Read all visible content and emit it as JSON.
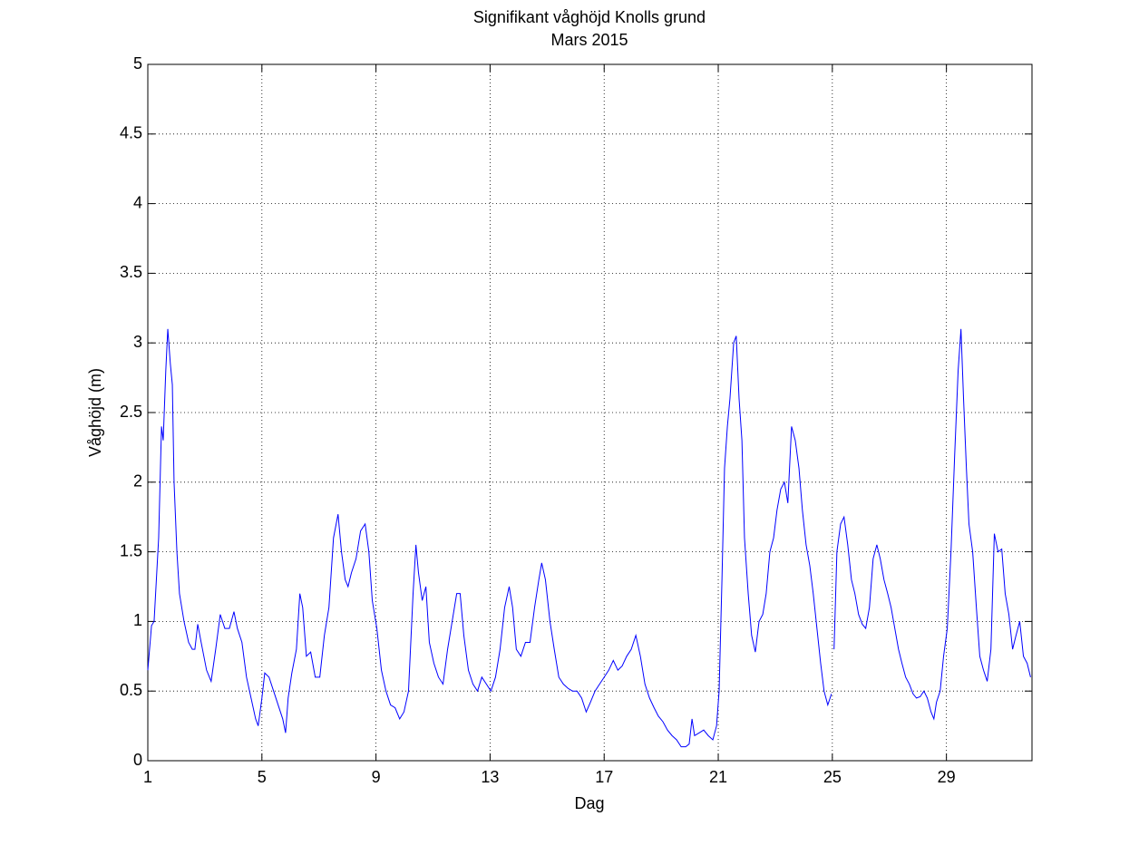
{
  "chart_data": {
    "type": "line",
    "title": "Signifikant våghöjd Knolls grund",
    "subtitle": "Mars 2015",
    "xlabel": "Dag",
    "ylabel": "Våghöjd (m)",
    "color": "#0000ff",
    "grid": true,
    "xlim": [
      1,
      32
    ],
    "ylim": [
      0,
      5
    ],
    "xticks": [
      1,
      5,
      9,
      13,
      17,
      21,
      25,
      29
    ],
    "yticks": [
      0,
      0.5,
      1,
      1.5,
      2,
      2.5,
      3,
      3.5,
      4,
      4.5,
      5
    ],
    "x": [
      1.0,
      1.13,
      1.22,
      1.38,
      1.48,
      1.54,
      1.63,
      1.7,
      1.79,
      1.86,
      1.92,
      2.02,
      2.11,
      2.27,
      2.43,
      2.56,
      2.65,
      2.75,
      2.87,
      3.06,
      3.22,
      3.38,
      3.54,
      3.7,
      3.86,
      4.02,
      4.14,
      4.3,
      4.46,
      4.62,
      4.78,
      4.87,
      5.0,
      5.1,
      5.25,
      5.41,
      5.57,
      5.73,
      5.83,
      5.92,
      6.05,
      6.21,
      6.33,
      6.43,
      6.56,
      6.71,
      6.87,
      7.03,
      7.19,
      7.35,
      7.51,
      7.67,
      7.79,
      7.92,
      8.02,
      8.14,
      8.3,
      8.46,
      8.62,
      8.75,
      8.87,
      9.03,
      9.19,
      9.35,
      9.51,
      9.67,
      9.83,
      9.98,
      10.14,
      10.3,
      10.4,
      10.49,
      10.62,
      10.75,
      10.87,
      11.03,
      11.19,
      11.35,
      11.51,
      11.67,
      11.83,
      11.95,
      12.08,
      12.24,
      12.4,
      12.56,
      12.71,
      12.87,
      13.03,
      13.19,
      13.35,
      13.51,
      13.67,
      13.79,
      13.92,
      14.08,
      14.24,
      14.4,
      14.56,
      14.71,
      14.81,
      14.94,
      15.1,
      15.25,
      15.41,
      15.57,
      15.73,
      15.89,
      16.05,
      16.21,
      16.37,
      16.52,
      16.68,
      16.84,
      17.0,
      17.16,
      17.32,
      17.48,
      17.63,
      17.79,
      17.95,
      18.11,
      18.27,
      18.43,
      18.59,
      18.75,
      18.9,
      19.06,
      19.22,
      19.38,
      19.54,
      19.7,
      19.86,
      19.98,
      20.08,
      20.17,
      20.33,
      20.49,
      20.65,
      20.81,
      20.94,
      21.03,
      21.13,
      21.22,
      21.32,
      21.41,
      21.54,
      21.63,
      21.73,
      21.83,
      21.92,
      22.05,
      22.17,
      22.3,
      22.43,
      22.56,
      22.68,
      22.81,
      22.94,
      23.06,
      23.19,
      23.32,
      23.44,
      23.57,
      23.7,
      23.83,
      23.95,
      24.08,
      24.21,
      24.33,
      24.46,
      24.59,
      24.71,
      24.84,
      24.97,
      25.03,
      25.06,
      25.16,
      25.29,
      25.41,
      25.54,
      25.67,
      25.79,
      25.92,
      26.05,
      26.17,
      26.3,
      26.43,
      26.56,
      26.68,
      26.81,
      26.94,
      27.06,
      27.19,
      27.32,
      27.44,
      27.57,
      27.7,
      27.83,
      27.95,
      28.08,
      28.21,
      28.33,
      28.46,
      28.56,
      28.65,
      28.78,
      28.9,
      29.03,
      29.16,
      29.29,
      29.41,
      29.51,
      29.6,
      29.7,
      29.79,
      29.92,
      30.05,
      30.17,
      30.3,
      30.43,
      30.56,
      30.68,
      30.81,
      30.94,
      31.06,
      31.19,
      31.32,
      31.44,
      31.57,
      31.7,
      31.83,
      31.95
    ],
    "values": [
      0.65,
      0.97,
      1.0,
      1.6,
      2.4,
      2.3,
      2.8,
      3.1,
      2.85,
      2.7,
      2.0,
      1.5,
      1.2,
      1.0,
      0.85,
      0.8,
      0.8,
      0.98,
      0.85,
      0.65,
      0.57,
      0.8,
      1.05,
      0.95,
      0.95,
      1.07,
      0.95,
      0.85,
      0.6,
      0.45,
      0.3,
      0.25,
      0.45,
      0.63,
      0.6,
      0.5,
      0.4,
      0.3,
      0.2,
      0.45,
      0.63,
      0.8,
      1.2,
      1.1,
      0.75,
      0.78,
      0.6,
      0.6,
      0.9,
      1.1,
      1.6,
      1.77,
      1.5,
      1.3,
      1.25,
      1.35,
      1.45,
      1.65,
      1.7,
      1.5,
      1.15,
      0.95,
      0.65,
      0.5,
      0.4,
      0.38,
      0.3,
      0.35,
      0.5,
      1.2,
      1.55,
      1.35,
      1.15,
      1.25,
      0.85,
      0.7,
      0.6,
      0.55,
      0.8,
      1.0,
      1.2,
      1.2,
      0.9,
      0.65,
      0.55,
      0.5,
      0.6,
      0.55,
      0.5,
      0.6,
      0.8,
      1.1,
      1.25,
      1.1,
      0.8,
      0.75,
      0.85,
      0.85,
      1.1,
      1.3,
      1.42,
      1.3,
      1.0,
      0.8,
      0.6,
      0.55,
      0.52,
      0.5,
      0.5,
      0.45,
      0.35,
      0.42,
      0.5,
      0.55,
      0.6,
      0.65,
      0.72,
      0.65,
      0.68,
      0.75,
      0.8,
      0.9,
      0.75,
      0.55,
      0.45,
      0.38,
      0.32,
      0.28,
      0.22,
      0.18,
      0.15,
      0.1,
      0.1,
      0.12,
      0.3,
      0.18,
      0.2,
      0.22,
      0.18,
      0.15,
      0.25,
      0.5,
      1.3,
      2.1,
      2.4,
      2.6,
      3.0,
      3.05,
      2.6,
      2.3,
      1.6,
      1.2,
      0.9,
      0.78,
      1.0,
      1.05,
      1.2,
      1.5,
      1.6,
      1.8,
      1.95,
      2.0,
      1.85,
      2.4,
      2.3,
      2.1,
      1.8,
      1.55,
      1.4,
      1.2,
      0.95,
      0.7,
      0.5,
      0.4,
      0.48,
      null,
      0.8,
      1.5,
      1.7,
      1.75,
      1.55,
      1.3,
      1.2,
      1.05,
      0.98,
      0.95,
      1.1,
      1.45,
      1.55,
      1.45,
      1.3,
      1.2,
      1.1,
      0.95,
      0.8,
      0.7,
      0.6,
      0.55,
      0.48,
      0.45,
      0.46,
      0.5,
      0.45,
      0.35,
      0.3,
      0.42,
      0.5,
      0.75,
      0.95,
      1.5,
      2.2,
      2.8,
      3.1,
      2.6,
      2.1,
      1.7,
      1.5,
      1.1,
      0.75,
      0.65,
      0.57,
      0.8,
      1.63,
      1.5,
      1.52,
      1.2,
      1.05,
      0.8,
      0.9,
      1.0,
      0.75,
      0.7,
      0.6
    ]
  }
}
